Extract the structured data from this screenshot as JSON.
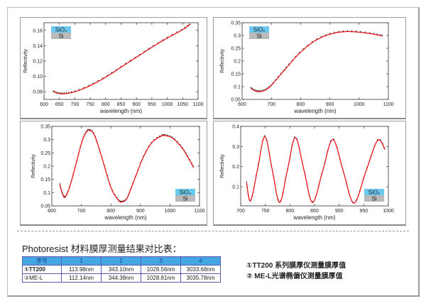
{
  "legend_box": {
    "top": "SiO₂",
    "bottom": "Si",
    "top_color": "#6cc8ef",
    "bottom_color": "#b9b9b9"
  },
  "colors": {
    "fit_line": "#e8141b",
    "measured_markers": "#222222"
  },
  "chart_data": [
    {
      "type": "line",
      "xlabel": "wavelength (nm)",
      "ylabel": "Reflectivity",
      "xlim": [
        600,
        1100
      ],
      "ylim": [
        0.07,
        0.17
      ],
      "xticks": [
        600,
        650,
        700,
        750,
        800,
        850,
        900,
        950,
        1000,
        1050,
        1100
      ],
      "xtick_labels": [
        "600",
        "650",
        "700",
        "750",
        "800",
        "850",
        "900",
        "950",
        "1000",
        "1050",
        "1100"
      ],
      "yticks": [
        0.08,
        0.1,
        0.12,
        0.14,
        0.16
      ],
      "ytick_labels": [
        "0.08",
        "0.10",
        "0.12",
        "0.14",
        "0.16"
      ],
      "legend": "top-left",
      "x": [
        630,
        650,
        670,
        700,
        750,
        800,
        850,
        900,
        950,
        1000,
        1050,
        1075
      ],
      "y": [
        0.08,
        0.0775,
        0.0775,
        0.08,
        0.088,
        0.099,
        0.112,
        0.125,
        0.138,
        0.15,
        0.161,
        0.168
      ]
    },
    {
      "type": "line",
      "xlabel": "wavelength (nm)",
      "ylabel": "Reflectivity",
      "xlim": [
        600,
        1100
      ],
      "ylim": [
        0.05,
        0.35
      ],
      "xticks": [
        600,
        700,
        800,
        900,
        1000,
        1100
      ],
      "xtick_labels": [
        "600",
        "700",
        "800",
        "900",
        "1000",
        "1100"
      ],
      "yticks": [
        0.05,
        0.1,
        0.15,
        0.2,
        0.25,
        0.3,
        0.35
      ],
      "ytick_labels": [
        "0.05",
        "0.1",
        "0.15",
        "0.2",
        "0.25",
        "0.3",
        "0.35"
      ],
      "legend": "top-left",
      "x": [
        630,
        645,
        660,
        680,
        700,
        730,
        760,
        800,
        850,
        900,
        950,
        1000,
        1050,
        1080
      ],
      "y": [
        0.093,
        0.083,
        0.08,
        0.087,
        0.105,
        0.145,
        0.185,
        0.235,
        0.28,
        0.305,
        0.315,
        0.313,
        0.305,
        0.298
      ]
    },
    {
      "type": "line",
      "xlabel": "wavelength (nm)",
      "ylabel": "Reflectivity",
      "xlim": [
        600,
        1100
      ],
      "ylim": [
        0.05,
        0.35
      ],
      "xticks": [
        600,
        700,
        800,
        900,
        1000,
        1100
      ],
      "xtick_labels": [
        "600",
        "700",
        "800",
        "900",
        "1000",
        "1100"
      ],
      "yticks": [
        0.05,
        0.1,
        0.15,
        0.2,
        0.25,
        0.3,
        0.35
      ],
      "ytick_labels": [
        "0.05",
        "0.1",
        "0.15",
        "0.2",
        "0.25",
        "0.3",
        "0.35"
      ],
      "legend": "bottom-right",
      "x": [
        627,
        636,
        645,
        660,
        680,
        700,
        715,
        728,
        745,
        770,
        800,
        825,
        838,
        855,
        880,
        910,
        940,
        970,
        985,
        1010,
        1040,
        1060,
        1080
      ],
      "y": [
        0.13,
        0.095,
        0.083,
        0.12,
        0.2,
        0.285,
        0.325,
        0.335,
        0.315,
        0.23,
        0.12,
        0.072,
        0.065,
        0.08,
        0.15,
        0.235,
        0.29,
        0.313,
        0.315,
        0.305,
        0.27,
        0.235,
        0.195
      ]
    },
    {
      "type": "line",
      "xlabel": "wavelength (nm)",
      "ylabel": "Reflectivity",
      "xlim": [
        700,
        1000
      ],
      "ylim": [
        0.005,
        0.4
      ],
      "xticks": [
        700,
        750,
        800,
        850,
        900,
        950,
        1000
      ],
      "xtick_labels": [
        "700",
        "750",
        "800",
        "850",
        "900",
        "950",
        "1000"
      ],
      "yticks": [
        0.1,
        0.2,
        0.3,
        0.4
      ],
      "ytick_labels": [
        "0.1",
        "0.2",
        "0.3",
        "0.4"
      ],
      "legend": "bottom-right",
      "x": [
        712,
        720,
        734.5,
        749,
        764,
        779,
        795,
        811,
        828.5,
        846,
        866.5,
        887,
        908.5,
        930,
        954,
        978,
        993
      ],
      "y": [
        0.12,
        0.03,
        0.19,
        0.35,
        0.186,
        0.022,
        0.184,
        0.345,
        0.183,
        0.022,
        0.178,
        0.335,
        0.176,
        0.018,
        0.174,
        0.33,
        0.285
      ]
    }
  ],
  "comparison": {
    "title": "Photoresist 材料膜厚测量结果对比表：",
    "headers": [
      "序号",
      "1",
      "2",
      "3",
      "4"
    ],
    "rows": [
      {
        "label": "①TT200",
        "values": [
          "113.98nm",
          "343.10nm",
          "1028.56nm",
          "3033.68nm"
        ]
      },
      {
        "label": "②ME-L",
        "values": [
          "112.14nm",
          "344.38nm",
          "1028.81nm",
          "3035.78nm"
        ]
      }
    ],
    "notes": [
      "①TT200 系列膜厚仪测量膜厚值",
      "② ME-L光谱椭偏仪测量膜厚值"
    ]
  }
}
